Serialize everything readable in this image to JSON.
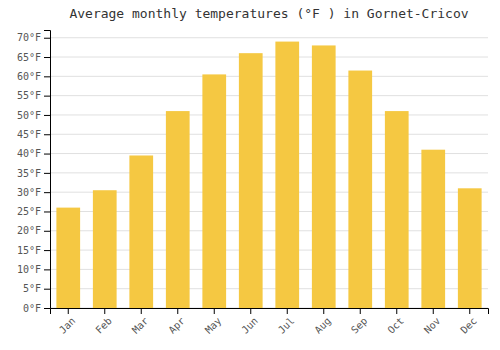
{
  "chart_data": {
    "type": "bar",
    "title": "Average monthly temperatures (°F ) in Gornet-Cricov",
    "categories": [
      "Jan",
      "Feb",
      "Mar",
      "Apr",
      "May",
      "Jun",
      "Jul",
      "Aug",
      "Sep",
      "Oct",
      "Nov",
      "Dec"
    ],
    "values": [
      26,
      30.5,
      39.5,
      51,
      60.5,
      66,
      69,
      68,
      61.5,
      51,
      41,
      31
    ],
    "color": "#F5C842",
    "ylim": [
      0,
      72
    ],
    "yticks": [
      {
        "value": 0,
        "label": "0°F"
      },
      {
        "value": 5,
        "label": "5°F"
      },
      {
        "value": 10,
        "label": "10°F"
      },
      {
        "value": 15,
        "label": "15°F"
      },
      {
        "value": 20,
        "label": "20°F"
      },
      {
        "value": 25,
        "label": "25°F"
      },
      {
        "value": 30,
        "label": "30°F"
      },
      {
        "value": 35,
        "label": "35°F"
      },
      {
        "value": 40,
        "label": "40°F"
      },
      {
        "value": 45,
        "label": "45°F"
      },
      {
        "value": 50,
        "label": "50°F"
      },
      {
        "value": 55,
        "label": "55°F"
      },
      {
        "value": 60,
        "label": "60°F"
      },
      {
        "value": 65,
        "label": "65°F"
      },
      {
        "value": 70,
        "label": "70°F"
      }
    ],
    "grid": true
  }
}
